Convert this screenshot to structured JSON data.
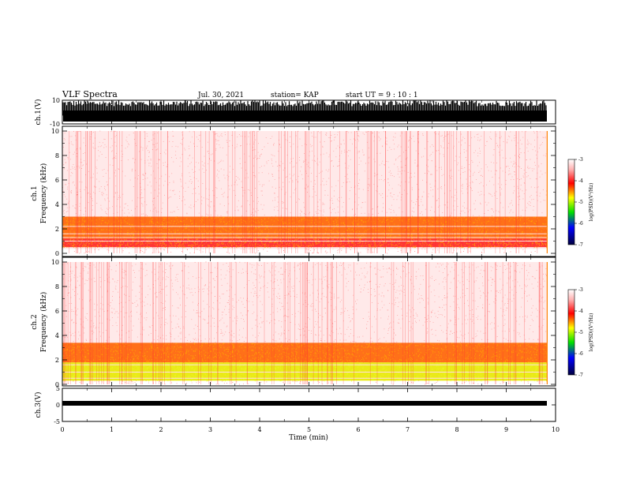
{
  "header": {
    "title": "VLF Spectra",
    "date": "Jul. 30, 2021",
    "station": "station= KAP",
    "start": "start  UT  =   9  : 10 : 1"
  },
  "chart_data": [
    {
      "type": "line",
      "panel": "ch1-waveform",
      "ylabel": "ch.1(V)",
      "ylim": [
        -10,
        10
      ],
      "yticks": [
        "10",
        "-10"
      ],
      "xlim": [
        0,
        10
      ]
    },
    {
      "type": "heatmap",
      "panel": "ch1-spectrogram",
      "ylabel_line1": "ch.1",
      "ylabel_line2": "Frequency (kHz)",
      "ylim": [
        0,
        10
      ],
      "yticks": [
        "0",
        "2",
        "4",
        "6",
        "8",
        "10"
      ],
      "xlim": [
        0,
        9.83
      ],
      "colorbar": {
        "label": "log(PSD)(V²/Hz)",
        "range": [
          -7,
          -3
        ],
        "ticks": [
          "-3",
          "-4",
          "-5",
          "-6",
          "-7"
        ]
      },
      "bands": [
        {
          "f_low": 0.5,
          "f_high": 1.2,
          "log_psd": -3.6
        },
        {
          "f_low": 1.2,
          "f_high": 3.0,
          "log_psd": -3.9
        },
        {
          "f_low": 3.0,
          "f_high": 10.0,
          "log_psd": -3.1
        }
      ],
      "lines_khz": [
        0.4,
        1.0,
        1.3,
        1.6,
        2.2
      ]
    },
    {
      "type": "heatmap",
      "panel": "ch2-spectrogram",
      "ylabel_line1": "ch.2",
      "ylabel_line2": "Frequency (kHz)",
      "ylim": [
        0,
        10
      ],
      "yticks": [
        "0",
        "2",
        "4",
        "6",
        "8",
        "10"
      ],
      "xlim": [
        0,
        9.83
      ],
      "colorbar": {
        "label": "log(PSD)(V²/Hz)",
        "range": [
          -7,
          -3
        ],
        "ticks": [
          "-3",
          "-4",
          "-5",
          "-6",
          "-7"
        ]
      },
      "bands": [
        {
          "f_low": 0.3,
          "f_high": 1.8,
          "log_psd": -4.6
        },
        {
          "f_low": 1.8,
          "f_high": 3.4,
          "log_psd": -3.9
        },
        {
          "f_low": 3.4,
          "f_high": 10.0,
          "log_psd": -3.1
        }
      ],
      "lines_khz": [
        0.5,
        1.0,
        1.6
      ]
    },
    {
      "type": "line",
      "panel": "ch3-waveform",
      "ylabel": "ch.3(V)",
      "ylim": [
        -5,
        5
      ],
      "yticks": [
        "5",
        "0",
        "-5"
      ],
      "xlim": [
        0,
        10
      ],
      "xlabel": "Time (min)",
      "xticks": [
        "0",
        "1",
        "2",
        "3",
        "4",
        "5",
        "6",
        "7",
        "8",
        "9",
        "10"
      ]
    }
  ]
}
